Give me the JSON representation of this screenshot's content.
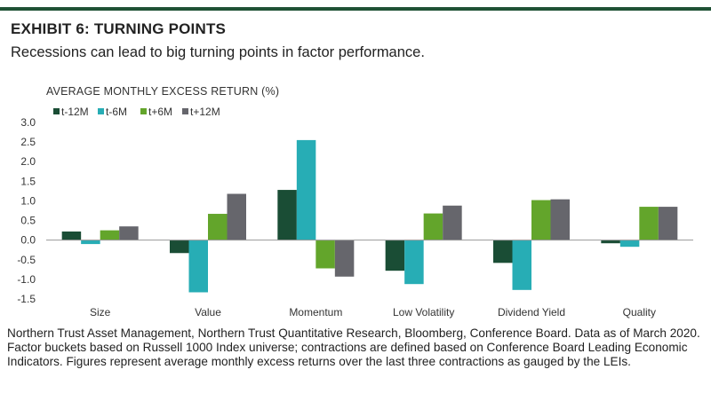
{
  "header": {
    "title": "EXHIBIT 6: TURNING POINTS",
    "subtitle": "Recessions can lead to big turning points in factor performance."
  },
  "footnote": "Northern Trust Asset Management, Northern Trust Quantitative Research, Bloomberg, Conference Board. Data as of March 2020. Factor buckets based on Russell 1000 Index universe; contractions are defined based on Conference Board Leading Economic Indicators. Figures represent average monthly excess returns over the last three contractions as gauged by the LEIs.",
  "chart_data": {
    "type": "bar",
    "ylabel": "AVERAGE MONTHLY EXCESS RETURN (%)",
    "ylim": [
      -1.5,
      3.0
    ],
    "yticks": [
      -1.5,
      -1.0,
      -0.5,
      0.0,
      0.5,
      1.0,
      1.5,
      2.0,
      2.5,
      3.0
    ],
    "ytick_labels": [
      "-1.5",
      "-1.0",
      "-0.5",
      "0.0",
      "0.5",
      "1.0",
      "1.5",
      "2.0",
      "2.5",
      "3.0"
    ],
    "grid": false,
    "legend": "top-left",
    "categories": [
      "Size",
      "Value",
      "Momentum",
      "Low Volatility",
      "Dividend Yield",
      "Quality"
    ],
    "series": [
      {
        "name": "t-12M",
        "color": "#1a4d35",
        "values": [
          0.22,
          -0.33,
          1.28,
          -0.78,
          -0.58,
          -0.08
        ]
      },
      {
        "name": "t-6M",
        "color": "#27adb5",
        "values": [
          -0.1,
          -1.33,
          2.55,
          -1.12,
          -1.27,
          -0.17
        ]
      },
      {
        "name": "t+6M",
        "color": "#63a52b",
        "values": [
          0.25,
          0.67,
          -0.72,
          0.68,
          1.02,
          0.85
        ]
      },
      {
        "name": "t+12M",
        "color": "#66666c",
        "values": [
          0.35,
          1.18,
          -0.93,
          0.88,
          1.04,
          0.85
        ]
      }
    ]
  }
}
